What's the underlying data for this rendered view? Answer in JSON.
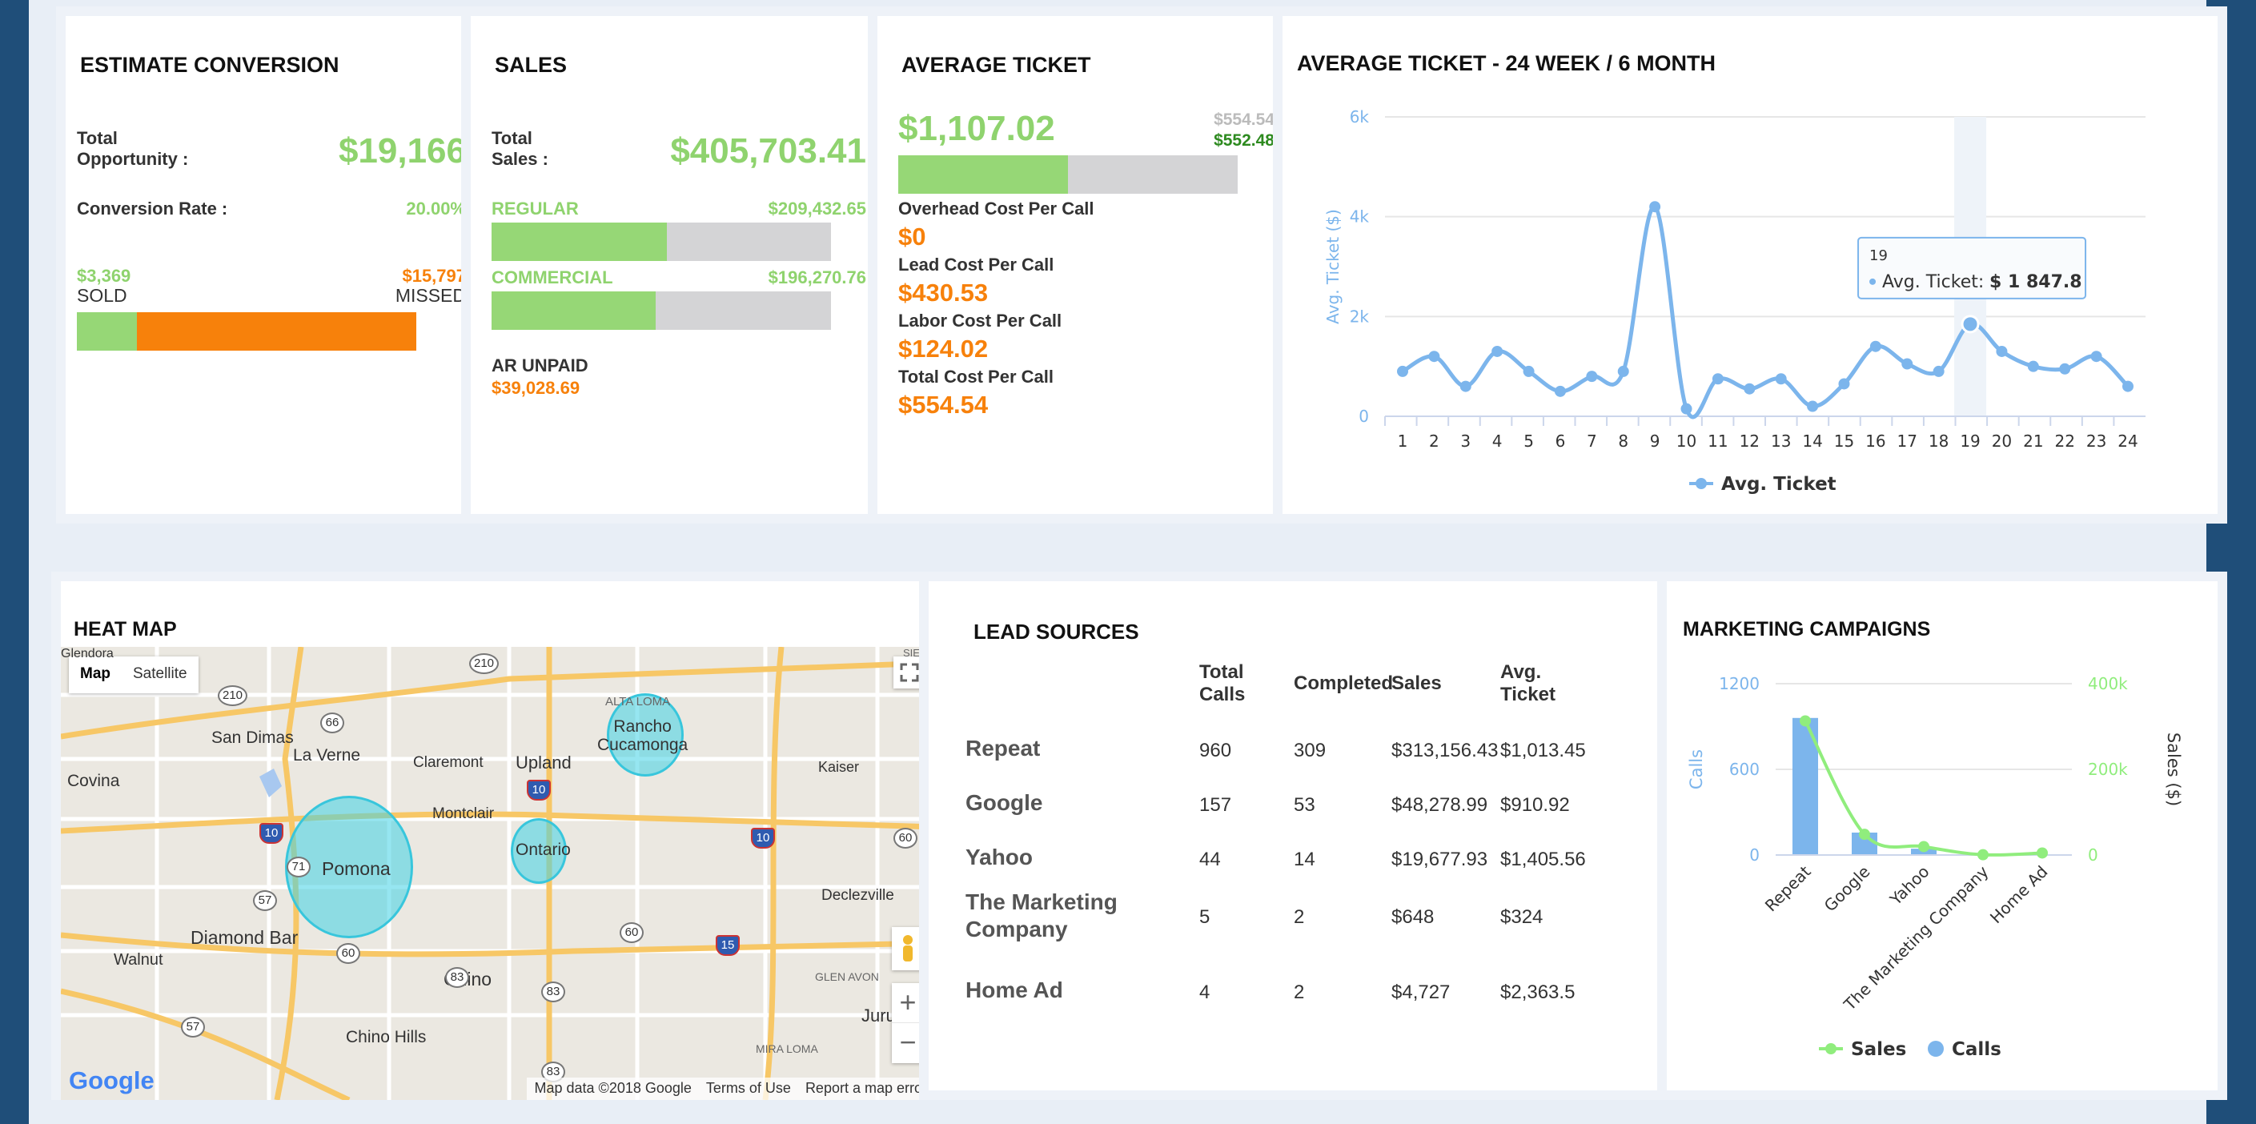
{
  "estimate_conversion": {
    "title": "ESTIMATE CONVERSION",
    "total_opportunity_label": "Total\nOpportunity :",
    "total_opportunity_value": "$19,166",
    "conversion_rate_label": "Conversion Rate :",
    "conversion_rate_value": "20.00%",
    "sold_value": "$3,369",
    "sold_label": "SOLD",
    "missed_value": "$15,797",
    "missed_label": "MISSED",
    "sold_fraction": 0.176,
    "colors": {
      "sold": "#96d776",
      "missed": "#f7810b"
    }
  },
  "sales": {
    "title": "SALES",
    "total_label": "Total\nSales :",
    "total_value": "$405,703.41",
    "regular_label": "REGULAR",
    "regular_value": "$209,432.65",
    "regular_fraction": 0.516,
    "commercial_label": "COMMERCIAL",
    "commercial_value": "$196,270.76",
    "commercial_fraction": 0.484,
    "ar_unpaid_label": "AR UNPAID",
    "ar_unpaid_value": "$39,028.69"
  },
  "average_ticket": {
    "title": "AVERAGE TICKET",
    "value": "$1,107.02",
    "cost_gray": "$554.54",
    "cost_green": "$552.48",
    "bar_fraction": 0.5,
    "overhead_label": "Overhead Cost Per Call",
    "overhead_value": "$0",
    "lead_label": "Lead Cost Per Call",
    "lead_value": "$430.53",
    "labor_label": "Labor Cost Per Call",
    "labor_value": "$124.02",
    "total_label": "Total Cost Per Call",
    "total_value": "$554.54"
  },
  "avg_ticket_chart": {
    "title": "AVERAGE TICKET - 24 WEEK / 6 MONTH",
    "tooltip_week": "19",
    "tooltip_label": "Avg. Ticket:",
    "tooltip_value": "$ 1 847.8",
    "legend": "Avg. Ticket"
  },
  "chart_data": [
    {
      "type": "line",
      "title": "",
      "ylabel": "Avg. Ticket ($)",
      "xlabel": "",
      "x": [
        "1",
        "2",
        "3",
        "4",
        "5",
        "6",
        "7",
        "8",
        "9",
        "10",
        "11",
        "12",
        "13",
        "14",
        "15",
        "16",
        "17",
        "18",
        "19",
        "20",
        "21",
        "22",
        "23",
        "24"
      ],
      "ylim": [
        0,
        6000
      ],
      "yticks": [
        "0",
        "2k",
        "4k",
        "6k"
      ],
      "series": [
        {
          "name": "Avg. Ticket",
          "values": [
            900,
            1200,
            600,
            1300,
            900,
            500,
            800,
            900,
            4200,
            150,
            750,
            550,
            750,
            200,
            650,
            1400,
            1050,
            900,
            1847.8,
            1300,
            1000,
            950,
            1200,
            600
          ]
        }
      ],
      "color": "#7cb5ec",
      "grid": true,
      "legend": "bottom-center"
    },
    {
      "type": "bar",
      "title": "",
      "categories": [
        "Repeat",
        "Google",
        "Yahoo",
        "The Marketing Company",
        "Home Ad"
      ],
      "series": [
        {
          "name": "Calls",
          "values": [
            960,
            157,
            44,
            5,
            4
          ],
          "axis": "left",
          "color": "#7cb5ec"
        },
        {
          "name": "Sales",
          "values": [
            313156.43,
            48278.99,
            19677.93,
            648,
            4727
          ],
          "axis": "right",
          "color": "#90ed7d",
          "type": "line"
        }
      ],
      "ylabel": "Calls",
      "ylabel_right": "Sales ($)",
      "ylim": [
        0,
        1200
      ],
      "ylim_right": [
        0,
        400000
      ],
      "yticks": [
        "0",
        "600",
        "1200"
      ],
      "yticks_right": [
        "0",
        "200k",
        "400k"
      ],
      "legend": "bottom-center"
    }
  ],
  "heat_map": {
    "title": "HEAT MAP",
    "map_button": "Map",
    "satellite_button": "Satellite",
    "attribution": "Map data ©2018 Google",
    "terms": "Terms of Use",
    "report": "Report a map error",
    "google": "Google",
    "places": {
      "pomona": "Pomona",
      "ontario": "Ontario",
      "rancho": "Rancho\nCucamonga",
      "san_dimas": "San Dimas",
      "la_verne": "La Verne",
      "claremont": "Claremont",
      "upland": "Upland",
      "covina": "Covina",
      "montclair": "Montclair",
      "kaiser": "Kaiser",
      "diamond_bar": "Diamond Bar",
      "walnut": "Walnut",
      "chino": "Chino",
      "chino_hills": "Chino Hills",
      "declezville": "Declezville",
      "jurupa": "Jurupa V",
      "alta_loma": "ALTA LOMA",
      "glen_avon": "GLEN AVON",
      "mira_loma": "MIRA LOMA",
      "glendora": "Glendora",
      "sierra": "SIERR"
    },
    "highway_shields": [
      "210",
      "210",
      "66",
      "10",
      "10",
      "10",
      "71",
      "57",
      "60",
      "60",
      "60",
      "83",
      "83",
      "15",
      "57",
      "83"
    ]
  },
  "lead_sources": {
    "title": "LEAD SOURCES",
    "headers": [
      "Total\nCalls",
      "Completed",
      "Sales",
      "Avg.\nTicket"
    ],
    "rows": [
      {
        "source": "Repeat",
        "calls": "960",
        "completed": "309",
        "sales": "$313,156.43",
        "avg": "$1,013.45"
      },
      {
        "source": "Google",
        "calls": "157",
        "completed": "53",
        "sales": "$48,278.99",
        "avg": "$910.92"
      },
      {
        "source": "Yahoo",
        "calls": "44",
        "completed": "14",
        "sales": "$19,677.93",
        "avg": "$1,405.56"
      },
      {
        "source": "The Marketing\nCompany",
        "calls": "5",
        "completed": "2",
        "sales": "$648",
        "avg": "$324"
      },
      {
        "source": "Home Ad",
        "calls": "4",
        "completed": "2",
        "sales": "$4,727",
        "avg": "$2,363.5"
      }
    ]
  },
  "marketing": {
    "title": "MARKETING CAMPAIGNS",
    "legend_sales": "Sales",
    "legend_calls": "Calls"
  }
}
